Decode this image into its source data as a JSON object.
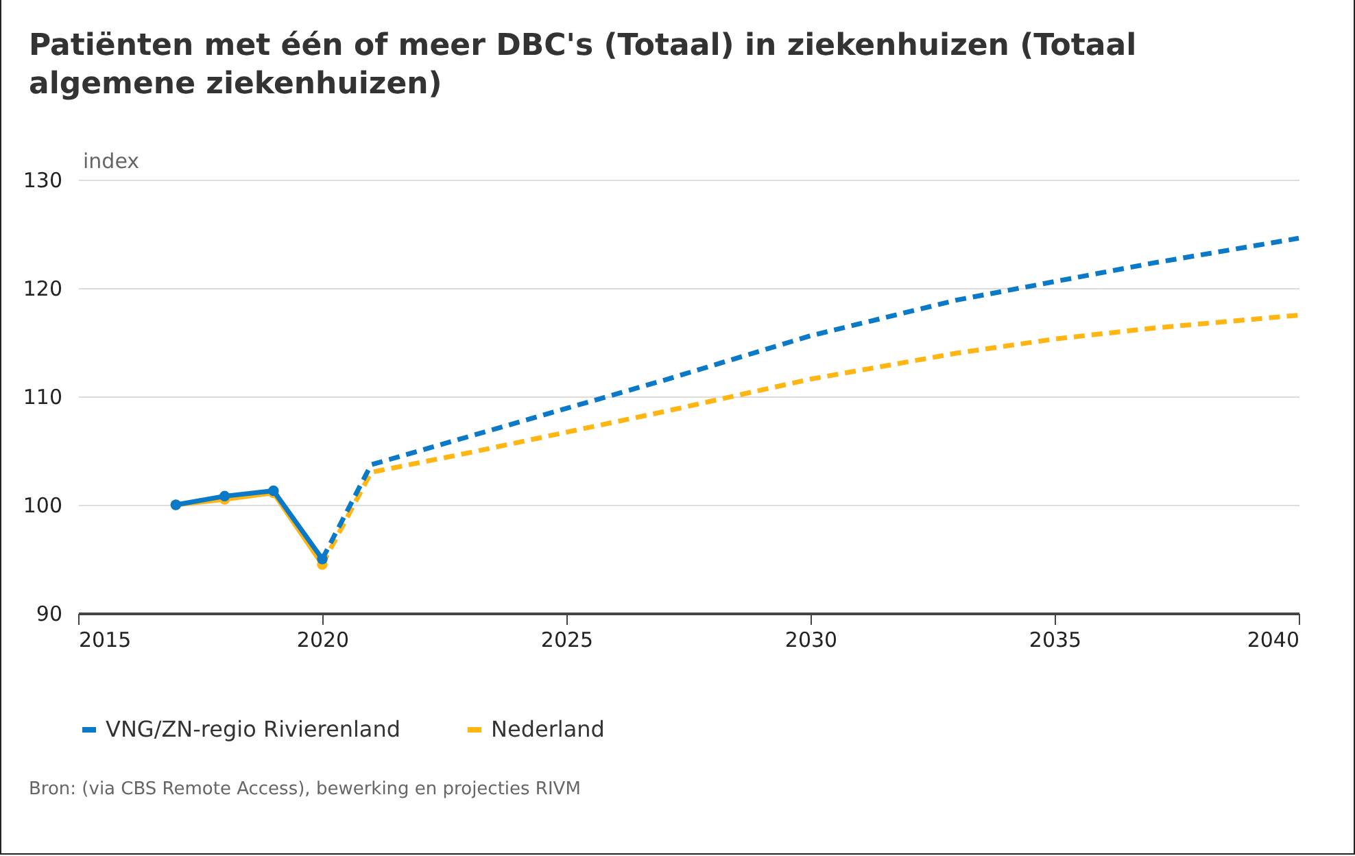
{
  "chart_data": {
    "type": "line",
    "title": "Patiënten met één of meer DBC's (Totaal) in ziekenhuizen (Totaal algemene ziekenhuizen)",
    "ylabel": "index",
    "annotations": [
      "Bron: (via CBS Remote Access), bewerking en projecties RIVM"
    ],
    "xlim": [
      2015,
      2040
    ],
    "xticks": [
      2015,
      2020,
      2025,
      2030,
      2035,
      2040
    ],
    "ylim": [
      90,
      130
    ],
    "yticks": [
      90,
      100,
      110,
      120,
      130
    ],
    "grid": "y",
    "legend": "bottom",
    "series": [
      {
        "name": "VNG/ZN-regio Rivierenland",
        "color": "#0a7ac8",
        "marker": "circle",
        "line_style": "solid",
        "x": [
          2017,
          2018,
          2019,
          2020
        ],
        "values": [
          100,
          100.8,
          101.3,
          95
        ]
      },
      {
        "name": "Nederland",
        "color": "#ffb612",
        "marker": "circle",
        "line_style": "solid",
        "x": [
          2017,
          2018,
          2019,
          2020
        ],
        "values": [
          100,
          100.5,
          101.1,
          94.5
        ]
      },
      {
        "color": "#0a7ac8",
        "marker": "none",
        "line_style": "dashed",
        "x": [
          2020,
          2021,
          2023,
          2025,
          2027,
          2030,
          2033,
          2035,
          2037,
          2040
        ],
        "values": [
          95,
          103.7,
          106.3,
          108.9,
          111.5,
          115.6,
          118.9,
          120.6,
          122.3,
          124.6
        ]
      },
      {
        "color": "#ffb612",
        "marker": "none",
        "line_style": "dashed",
        "x": [
          2020,
          2021,
          2023,
          2025,
          2027,
          2030,
          2033,
          2035,
          2037,
          2040
        ],
        "values": [
          94.5,
          103,
          104.8,
          106.7,
          108.6,
          111.6,
          114,
          115.3,
          116.3,
          117.5
        ]
      }
    ]
  }
}
